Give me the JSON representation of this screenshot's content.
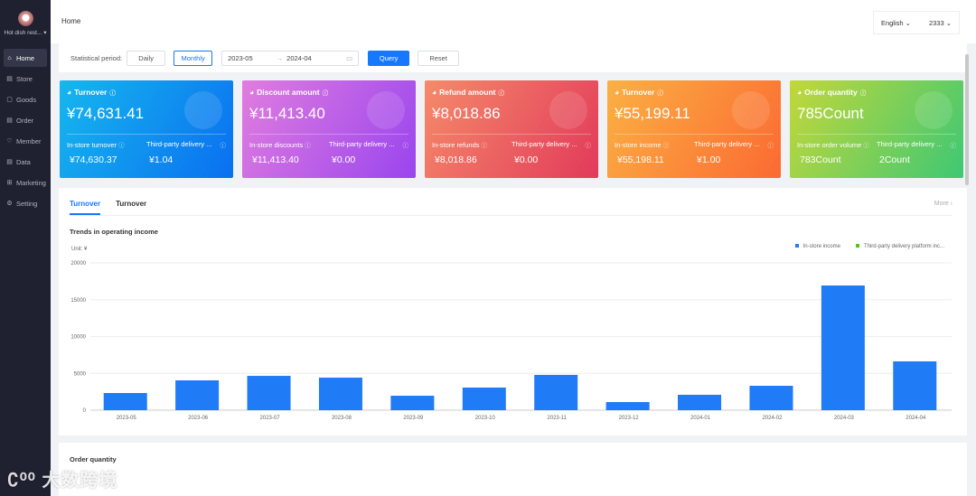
{
  "sidebar": {
    "shop_name": "Hot dish rest...",
    "items": [
      {
        "label": "Home",
        "icon": "home-icon",
        "active": true
      },
      {
        "label": "Store",
        "icon": "store-icon"
      },
      {
        "label": "Goods",
        "icon": "goods-icon"
      },
      {
        "label": "Order",
        "icon": "order-icon"
      },
      {
        "label": "Member",
        "icon": "member-icon"
      },
      {
        "label": "Data",
        "icon": "data-icon"
      },
      {
        "label": "Marketing",
        "icon": "gift-icon"
      },
      {
        "label": "Setting",
        "icon": "gear-icon"
      }
    ]
  },
  "header": {
    "title": "Home",
    "language": "English",
    "user": "2333"
  },
  "filter": {
    "label": "Statistical period:",
    "daily": "Daily",
    "monthly": "Monthly",
    "start": "2023-05",
    "end": "2024-04",
    "query": "Query",
    "reset": "Reset"
  },
  "cards": [
    {
      "title": "Turnover",
      "value": "¥74,631.41",
      "sub1": "In-store turnover",
      "sub2": "Third-party delivery ...",
      "val1": "¥74,630.37",
      "val2": "¥1.04",
      "gradient": [
        "#16b7ee",
        "#0a6ff0"
      ]
    },
    {
      "title": "Discount amount",
      "value": "¥11,413.40",
      "sub1": "In-store discounts",
      "sub2": "Third-party delivery ...",
      "val1": "¥11,413.40",
      "val2": "¥0.00",
      "gradient": [
        "#e07ddf",
        "#9a45ee"
      ]
    },
    {
      "title": "Refund amount",
      "value": "¥8,018.86",
      "sub1": "In-store refunds",
      "sub2": "Third-party delivery ...",
      "val1": "¥8,018.86",
      "val2": "¥0.00",
      "gradient": [
        "#f58a6a",
        "#e23a5a"
      ]
    },
    {
      "title": "Turnover",
      "value": "¥55,199.11",
      "sub1": "In-store income",
      "sub2": "Third-party delivery ...",
      "val1": "¥55,198.11",
      "val2": "¥1.00",
      "gradient": [
        "#fbb043",
        "#fb6a32"
      ]
    },
    {
      "title": "Order quantity",
      "value": "785Count",
      "sub1": "In-store order volume",
      "sub2": "Third-party delivery ...",
      "val1": "783Count",
      "val2": "2Count",
      "gradient": [
        "#c3d73a",
        "#3ec874"
      ]
    }
  ],
  "tabs": [
    "Turnover",
    "Turnover"
  ],
  "more": "More",
  "chart_data": {
    "type": "bar",
    "title": "Trends in operating income",
    "unit_label": "Unit: ¥",
    "categories": [
      "2023-05",
      "2023-06",
      "2023-07",
      "2023-08",
      "2023-09",
      "2023-10",
      "2023-11",
      "2023-12",
      "2024-01",
      "2024-02",
      "2024-03",
      "2024-04"
    ],
    "series": [
      {
        "name": "In-store income",
        "color": "#1f7bf6",
        "values": [
          2330,
          4050,
          4660,
          4420,
          1960,
          3070,
          4790,
          1100,
          2090,
          3310,
          16930,
          6630
        ]
      },
      {
        "name": "Third-party delivery platform inc...",
        "color": "#52c41a",
        "values": [
          0,
          0,
          0,
          0,
          0,
          0,
          0,
          0,
          0,
          0,
          1,
          0
        ]
      }
    ],
    "yticks": [
      0,
      5000,
      10000,
      15000,
      20000
    ],
    "ylim": [
      0,
      20000
    ],
    "grid": true,
    "legend": "top-right"
  },
  "order_panel": {
    "title": "Order quantity"
  },
  "watermark": "大数跨境"
}
